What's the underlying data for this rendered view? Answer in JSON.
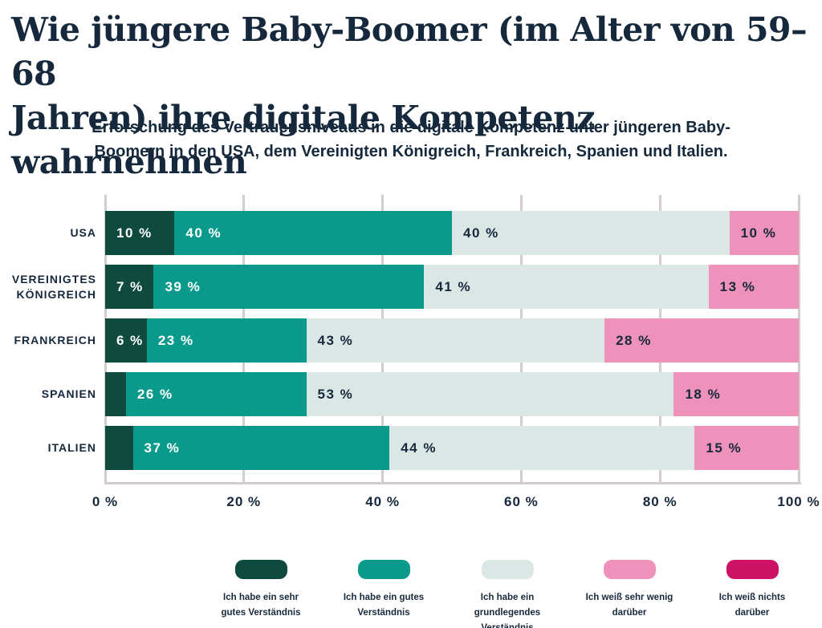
{
  "page": {
    "background": "#ffffff",
    "text_color": "#16293c",
    "grid_color": "#d3cecb"
  },
  "header": {
    "title": "Wie jüngere Baby-Boomer (im Alter von 59–68\nJahren) ihre digitale Kompetenz wahrnehmen",
    "subtitle": "Erforschung des Vertrauensniveaus in die digitale Kompetenz unter jüngeren Baby-\nBoomern in den USA, dem Vereinigten Königreich, Frankreich, Spanien und Italien."
  },
  "chart_data": {
    "type": "bar",
    "orientation": "horizontal",
    "stacked": true,
    "title": "Wie jüngere Baby-Boomer (im Alter von 59–68 Jahren) ihre digitale Kompetenz wahrnehmen",
    "categories": [
      "USA",
      "Vereinigtes Königreich",
      "Frankreich",
      "Spanien",
      "Italien"
    ],
    "category_labels": [
      "USA",
      "VEREINIGTES\nKÖNIGREICH",
      "FRANKREICH",
      "SPANIEN",
      "ITALIEN"
    ],
    "series": [
      {
        "name": "Ich habe ein sehr gutes Verständnis",
        "legend_label": "Ich habe ein sehr\ngutes Verständnis",
        "color": "#0e4a3d",
        "label_color": "#ffffff",
        "values": [
          10,
          7,
          6,
          3,
          4
        ],
        "labels": [
          "10 %",
          "7 %",
          "6 %",
          "",
          ""
        ]
      },
      {
        "name": "Ich habe ein gutes Verständnis",
        "legend_label": "Ich habe ein gutes\nVerständnis",
        "color": "#099a8b",
        "label_color": "#ffffff",
        "values": [
          40,
          39,
          23,
          26,
          37
        ],
        "labels": [
          "40 %",
          "39 %",
          "23 %",
          "26 %",
          "37 %"
        ]
      },
      {
        "name": "Ich habe ein grundlegendes Verständnis",
        "legend_label": "Ich habe ein\ngrundlegendes\nVerständnis",
        "color": "#dae7e4",
        "label_color": "#16293c",
        "values": [
          40,
          41,
          43,
          53,
          44
        ],
        "labels": [
          "40 %",
          "41 %",
          "43 %",
          "53 %",
          "44 %"
        ]
      },
      {
        "name": "Ich weiß sehr wenig darüber",
        "legend_label": "Ich weiß sehr wenig\ndarüber",
        "color": "#ee91bb",
        "label_color": "#16293c",
        "values": [
          10,
          13,
          28,
          18,
          15
        ],
        "labels": [
          "10 %",
          "13 %",
          "28 %",
          "18 %",
          "15 %"
        ]
      },
      {
        "name": "Ich weiß nichts darüber",
        "legend_label": "Ich weiß nichts\ndarüber",
        "color": "#cd1164",
        "label_color": "#ffffff",
        "values": [
          0,
          0,
          0,
          0,
          0
        ],
        "labels": [
          "",
          "",
          "",
          "",
          ""
        ]
      }
    ],
    "x_ticks": [
      "0 %",
      "20 %",
      "40 %",
      "60 %",
      "80 %",
      "100 %"
    ],
    "x_tick_values": [
      0,
      20,
      40,
      60,
      80,
      100
    ],
    "xlim": [
      0,
      100
    ],
    "grid": true,
    "legend_position": "bottom"
  }
}
